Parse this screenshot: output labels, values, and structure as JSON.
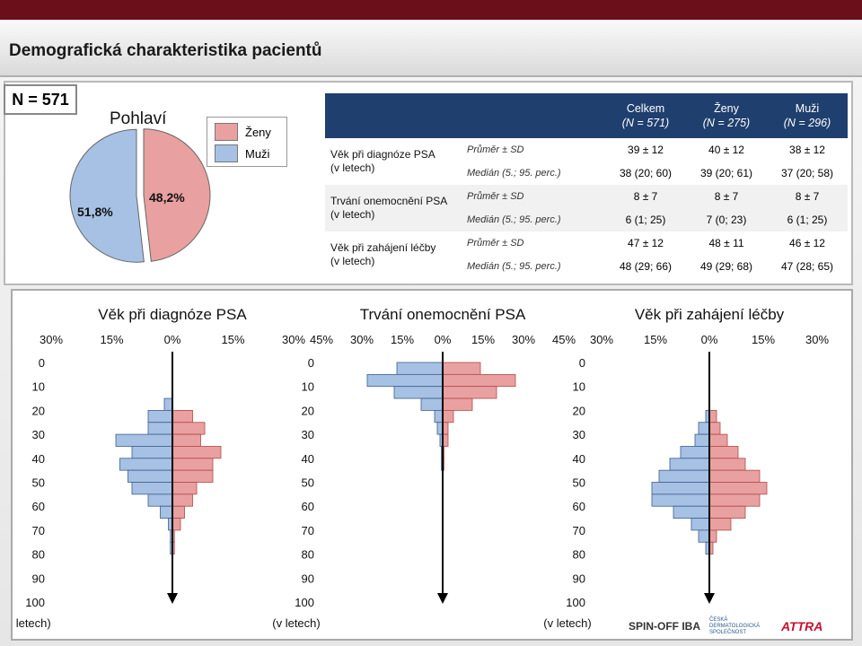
{
  "title": "Demografická charakteristika pacientů",
  "n_label": "N = 571",
  "pie": {
    "title": "Pohlaví",
    "legend": [
      {
        "label": "Ženy",
        "color": "#e9a0a0"
      },
      {
        "label": "Muži",
        "color": "#a6c1e4"
      }
    ],
    "slices": [
      {
        "label": "48,2%",
        "value": 48.2,
        "color": "#e9a0a0"
      },
      {
        "label": "51,8%",
        "value": 51.8,
        "color": "#a6c1e4"
      }
    ]
  },
  "table": {
    "headers": [
      "",
      "",
      "Celkem\n(N = 571)",
      "Ženy\n(N = 275)",
      "Muži\n(N = 296)"
    ],
    "header_total": {
      "line1": "Celkem",
      "line2": "(N = 571)"
    },
    "header_women": {
      "line1": "Ženy",
      "line2": "(N = 275)"
    },
    "header_men": {
      "line1": "Muži",
      "line2": "(N = 296)"
    },
    "rows": [
      {
        "name": "Věk při diagnóze PSA",
        "unit": "(v letech)",
        "mean_label": "Průměr ± SD",
        "mean": [
          "39 ± 12",
          "40 ± 12",
          "38 ± 12"
        ],
        "median_label": "Medián (5.; 95. perc.)",
        "median": [
          "38 (20; 60)",
          "39 (20; 61)",
          "37 (20; 58)"
        ]
      },
      {
        "name": "Trvání onemocnění PSA",
        "unit": "(v letech)",
        "mean_label": "Průměr ± SD",
        "mean": [
          "8 ± 7",
          "8 ± 7",
          "8 ± 7"
        ],
        "median_label": "Medián (5.; 95. perc.)",
        "median": [
          "6 (1; 25)",
          "7 (0; 23)",
          "6 (1; 25)"
        ]
      },
      {
        "name": "Věk při zahájení léčby",
        "unit": "(v letech)",
        "mean_label": "Průměr ± SD",
        "mean": [
          "47 ± 12",
          "48 ± 11",
          "46 ± 12"
        ],
        "median_label": "Medián (5.; 95. perc.)",
        "median": [
          "48 (29; 66)",
          "49 (29; 68)",
          "47 (28; 65)"
        ]
      }
    ]
  },
  "chart_data": [
    {
      "type": "bar",
      "title": "Věk při diagnóze PSA",
      "ylabel": "(v letech)",
      "y_ticks": [
        0,
        10,
        20,
        30,
        40,
        50,
        60,
        70,
        80,
        90,
        100
      ],
      "x_ticks": [
        "30%",
        "15%",
        "0%",
        "15%",
        "30%"
      ],
      "x_max": 30,
      "bin_width": 5,
      "bins_start": [
        15,
        20,
        25,
        30,
        35,
        40,
        45,
        50,
        55,
        60,
        65,
        70,
        75
      ],
      "series": [
        {
          "name": "Muži",
          "color": "#a6c1e4",
          "values": [
            2,
            6,
            6,
            14,
            10,
            13,
            11,
            10,
            6,
            3,
            1,
            0.5,
            0.5
          ]
        },
        {
          "name": "Ženy",
          "color": "#e9a0a0",
          "values": [
            0,
            5,
            8,
            7,
            12,
            10,
            10,
            6,
            5,
            3,
            2,
            0.5,
            0.5
          ]
        }
      ]
    },
    {
      "type": "bar",
      "title": "Trvání onemocnění PSA",
      "ylabel": "(v letech)",
      "y_ticks": [
        0,
        10,
        20,
        30,
        40,
        50,
        60,
        70,
        80,
        90,
        100
      ],
      "x_ticks": [
        "45%",
        "30%",
        "15%",
        "0%",
        "15%",
        "30%",
        "45%"
      ],
      "x_max": 45,
      "bin_width": 5,
      "bins_start": [
        0,
        5,
        10,
        15,
        20,
        25,
        30,
        35,
        40
      ],
      "series": [
        {
          "name": "Muži",
          "color": "#a6c1e4",
          "values": [
            17,
            28,
            18,
            8,
            3,
            2,
            1,
            0.5,
            0.5
          ]
        },
        {
          "name": "Ženy",
          "color": "#e9a0a0",
          "values": [
            14,
            27,
            20,
            11,
            4,
            2,
            2,
            0.5,
            0.5
          ]
        }
      ]
    },
    {
      "type": "bar",
      "title": "Věk při zahájení léčby",
      "ylabel": "(v letech)",
      "y_ticks": [
        0,
        10,
        20,
        30,
        40,
        50,
        60,
        70,
        80,
        90,
        100
      ],
      "x_ticks": [
        "30%",
        "15%",
        "0%",
        "15%",
        "30%"
      ],
      "x_max": 30,
      "bin_width": 5,
      "bins_start": [
        20,
        25,
        30,
        35,
        40,
        45,
        50,
        55,
        60,
        65,
        70,
        75
      ],
      "series": [
        {
          "name": "Muži",
          "color": "#a6c1e4",
          "values": [
            1,
            3,
            4,
            8,
            11,
            14,
            16,
            16,
            10,
            5,
            3,
            1
          ]
        },
        {
          "name": "Ženy",
          "color": "#e9a0a0",
          "values": [
            2,
            3,
            5,
            8,
            10,
            14,
            16,
            14,
            10,
            6,
            2,
            1
          ]
        }
      ]
    }
  ],
  "logos": [
    "SPIN-OFF IBA",
    "ČESKÁ DERMATOLOGICKÁ SPOLEČNOST",
    "ATTRA"
  ]
}
